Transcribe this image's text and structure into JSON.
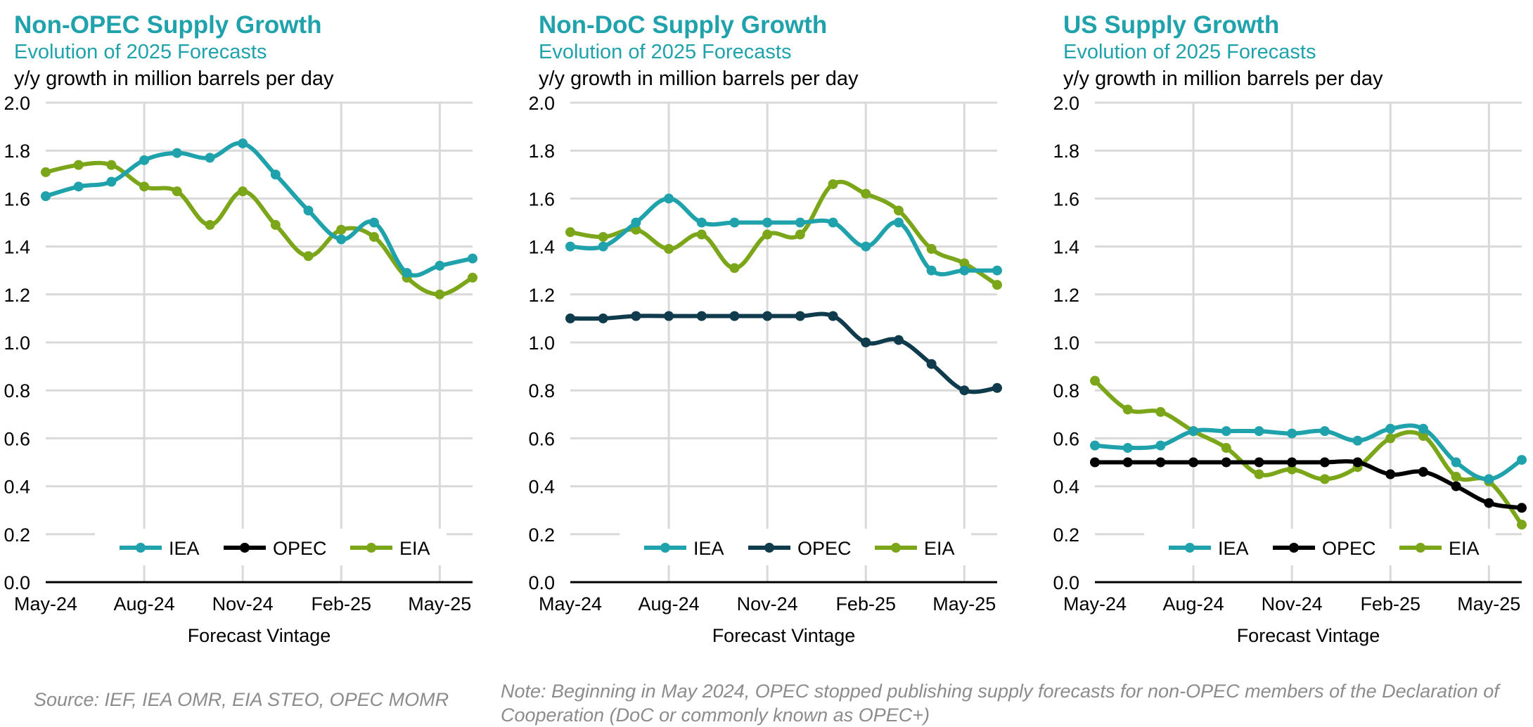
{
  "chart_data": [
    {
      "type": "line",
      "title": "Non-OPEC Supply Growth",
      "subtitle": "Evolution of 2025 Forecasts",
      "units_label": "y/y growth in million barrels per day",
      "xlabel": "Forecast Vintage",
      "ylabel": "",
      "ylim": [
        0,
        2.0
      ],
      "yticks": [
        "0.0",
        "0.2",
        "0.4",
        "0.6",
        "0.8",
        "1.0",
        "1.2",
        "1.4",
        "1.6",
        "1.8",
        "2.0"
      ],
      "x_tick_labels": [
        "May-24",
        "Aug-24",
        "Nov-24",
        "Feb-25",
        "May-25"
      ],
      "x_tick_positions": [
        0,
        3,
        6,
        9,
        12
      ],
      "n_points": 14,
      "legend_position": "bottom",
      "series": [
        {
          "name": "IEA",
          "color": "#1fa2ab",
          "values": [
            1.61,
            1.65,
            1.67,
            1.76,
            1.79,
            1.77,
            1.83,
            1.7,
            1.55,
            1.43,
            1.5,
            1.29,
            1.32,
            1.35
          ]
        },
        {
          "name": "OPEC",
          "color": "#000000",
          "values": []
        },
        {
          "name": "EIA",
          "color": "#7ca619",
          "values": [
            1.71,
            1.74,
            1.74,
            1.65,
            1.63,
            1.49,
            1.63,
            1.49,
            1.36,
            1.47,
            1.44,
            1.27,
            1.2,
            1.27
          ]
        }
      ]
    },
    {
      "type": "line",
      "title": "Non-DoC Supply Growth",
      "subtitle": "Evolution of 2025 Forecasts",
      "units_label": "y/y growth in million barrels per day",
      "xlabel": "Forecast Vintage",
      "ylabel": "",
      "ylim": [
        0,
        2.0
      ],
      "yticks": [
        "0.0",
        "0.2",
        "0.4",
        "0.6",
        "0.8",
        "1.0",
        "1.2",
        "1.4",
        "1.6",
        "1.8",
        "2.0"
      ],
      "x_tick_labels": [
        "May-24",
        "Aug-24",
        "Nov-24",
        "Feb-25",
        "May-25"
      ],
      "x_tick_positions": [
        0,
        3,
        6,
        9,
        12
      ],
      "n_points": 14,
      "legend_position": "bottom",
      "series": [
        {
          "name": "IEA",
          "color": "#1fa2ab",
          "values": [
            1.4,
            1.4,
            1.5,
            1.6,
            1.5,
            1.5,
            1.5,
            1.5,
            1.5,
            1.4,
            1.5,
            1.3,
            1.3,
            1.3
          ]
        },
        {
          "name": "OPEC",
          "color": "#0f3b4c",
          "values": [
            1.1,
            1.1,
            1.11,
            1.11,
            1.11,
            1.11,
            1.11,
            1.11,
            1.11,
            1.0,
            1.01,
            0.91,
            0.8,
            0.81
          ]
        },
        {
          "name": "EIA",
          "color": "#7ca619",
          "values": [
            1.46,
            1.44,
            1.47,
            1.39,
            1.45,
            1.31,
            1.45,
            1.45,
            1.66,
            1.62,
            1.55,
            1.39,
            1.33,
            1.24
          ]
        }
      ]
    },
    {
      "type": "line",
      "title": "US Supply Growth",
      "subtitle": "Evolution of 2025 Forecasts",
      "units_label": "y/y growth in million barrels per day",
      "xlabel": "Forecast Vintage",
      "ylabel": "",
      "ylim": [
        0,
        2.0
      ],
      "yticks": [
        "0.0",
        "0.2",
        "0.4",
        "0.6",
        "0.8",
        "1.0",
        "1.2",
        "1.4",
        "1.6",
        "1.8",
        "2.0"
      ],
      "x_tick_labels": [
        "May-24",
        "Aug-24",
        "Nov-24",
        "Feb-25",
        "May-25"
      ],
      "x_tick_positions": [
        0,
        3,
        6,
        9,
        12
      ],
      "n_points": 14,
      "legend_position": "bottom",
      "series": [
        {
          "name": "IEA",
          "color": "#1fa2ab",
          "values": [
            0.57,
            0.56,
            0.57,
            0.63,
            0.63,
            0.63,
            0.62,
            0.63,
            0.59,
            0.64,
            0.64,
            0.5,
            0.43,
            0.51
          ]
        },
        {
          "name": "OPEC",
          "color": "#000000",
          "values": [
            0.5,
            0.5,
            0.5,
            0.5,
            0.5,
            0.5,
            0.5,
            0.5,
            0.5,
            0.45,
            0.46,
            0.4,
            0.33,
            0.31
          ]
        },
        {
          "name": "EIA",
          "color": "#7ca619",
          "values": [
            0.84,
            0.72,
            0.71,
            0.63,
            0.56,
            0.45,
            0.47,
            0.43,
            0.48,
            0.6,
            0.61,
            0.44,
            0.42,
            0.24
          ]
        }
      ]
    }
  ],
  "footer": {
    "source": "Source: IEF, IEA OMR, EIA STEO, OPEC MOMR",
    "note": "Note: Beginning in May 2024, OPEC stopped publishing supply forecasts for non-OPEC members of the Declaration of Cooperation (DoC or commonly known as OPEC+)"
  }
}
